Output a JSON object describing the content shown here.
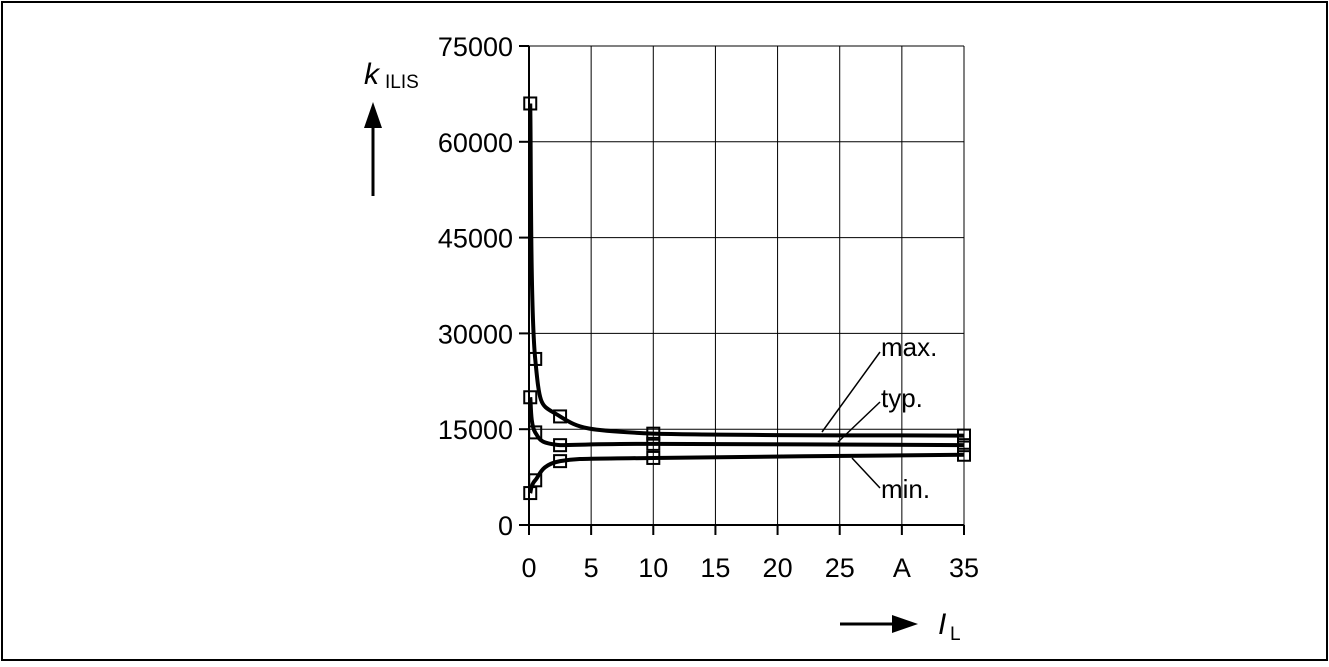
{
  "chart_data": {
    "type": "line",
    "title": "",
    "xlabel": {
      "symbol": "I",
      "subscript": "L",
      "unit": "A"
    },
    "ylabel": {
      "symbol": "k",
      "subscript": "ILIS"
    },
    "xlim": [
      0,
      35
    ],
    "ylim": [
      0,
      75000
    ],
    "x_ticks": [
      "0",
      "5",
      "10",
      "15",
      "20",
      "25",
      "A",
      "35"
    ],
    "y_ticks": [
      "0",
      "15000",
      "30000",
      "45000",
      "60000",
      "75000"
    ],
    "grid": true,
    "legend": "none",
    "series": [
      {
        "name": "max.",
        "x": [
          0.1,
          0.5,
          2.5,
          10,
          35
        ],
        "y": [
          66000,
          26000,
          17000,
          14300,
          14000
        ]
      },
      {
        "name": "typ.",
        "x": [
          0.1,
          0.5,
          2.5,
          10,
          35
        ],
        "y": [
          20000,
          14500,
          12500,
          12700,
          12500
        ]
      },
      {
        "name": "min.",
        "x": [
          0.1,
          0.5,
          2.5,
          10,
          35
        ],
        "y": [
          5000,
          7000,
          10000,
          10500,
          11000
        ]
      }
    ]
  }
}
